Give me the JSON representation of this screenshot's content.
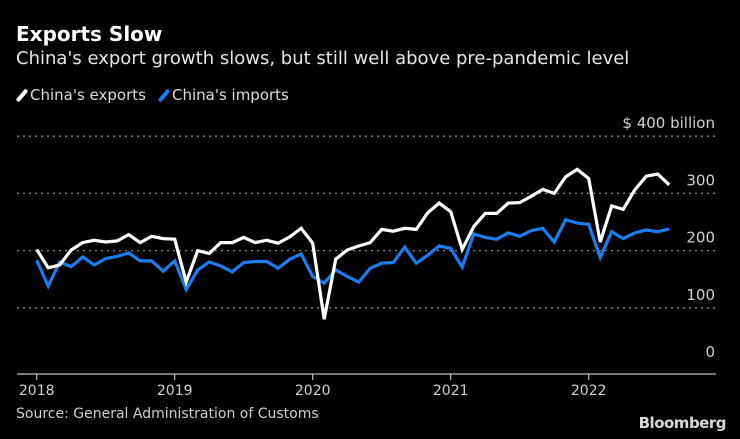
{
  "header": {
    "title": "Exports Slow",
    "subtitle": "China's export growth slows, but still well above pre-pandemic level"
  },
  "legend": [
    {
      "label": "China's exports",
      "color": "#ffffff"
    },
    {
      "label": "China's imports",
      "color": "#1a7df0"
    }
  ],
  "footer": {
    "source": "Source: General Administration of Customs",
    "brand": "Bloomberg"
  },
  "chart_data": {
    "type": "line",
    "title": "Exports Slow",
    "subtitle": "China's export growth slows, but still well above pre-pandemic level",
    "x_start": "2018-01",
    "x_end": "2022-08",
    "x_frequency": "monthly",
    "x_ticks": [
      "2018",
      "2019",
      "2020",
      "2021",
      "2022"
    ],
    "y_unit_label": "$ 400 billion",
    "y_ticks": [
      0,
      100,
      200,
      300,
      400
    ],
    "y_tick_labels": [
      "0",
      "100",
      "200",
      "300",
      "$ 400 billion"
    ],
    "ylim": [
      0,
      400
    ],
    "y_axis_side": "right",
    "grid": true,
    "legend_position": "top-left",
    "series": [
      {
        "name": "China's exports",
        "color": "#ffffff",
        "values": [
          202,
          170,
          175,
          201,
          214,
          218,
          215,
          217,
          228,
          214,
          225,
          221,
          220,
          145,
          200,
          195,
          214,
          214,
          223,
          214,
          218,
          213,
          224,
          239,
          213,
          80,
          185,
          201,
          208,
          214,
          237,
          234,
          239,
          237,
          266,
          283,
          268,
          202,
          242,
          265,
          265,
          283,
          284,
          295,
          307,
          300,
          329,
          342,
          326,
          215,
          278,
          272,
          306,
          330,
          334,
          315
        ]
      },
      {
        "name": "China's imports",
        "color": "#1a7df0",
        "values": [
          183,
          138,
          180,
          172,
          189,
          175,
          186,
          190,
          196,
          182,
          182,
          164,
          182,
          132,
          166,
          180,
          173,
          163,
          179,
          181,
          181,
          169,
          185,
          194,
          155,
          143,
          166,
          155,
          145,
          169,
          178,
          179,
          206,
          178,
          192,
          208,
          204,
          171,
          229,
          223,
          220,
          231,
          225,
          235,
          239,
          215,
          254,
          248,
          246,
          188,
          233,
          221,
          231,
          236,
          233,
          238
        ]
      }
    ]
  }
}
